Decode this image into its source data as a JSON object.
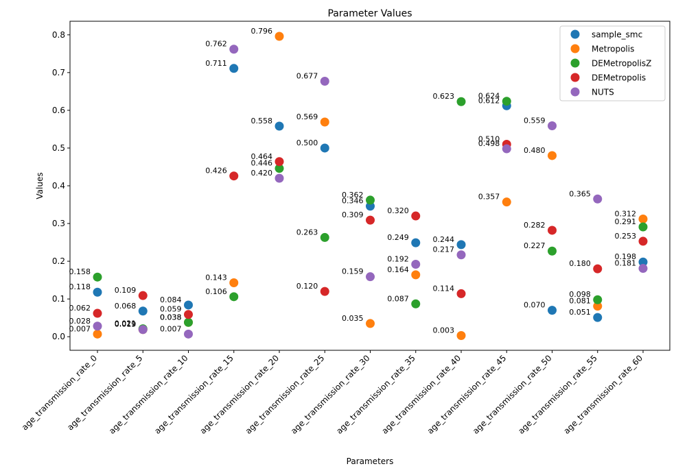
{
  "chart_data": {
    "type": "scatter",
    "title": "Parameter Values",
    "xlabel": "Parameters",
    "ylabel": "Values",
    "categories": [
      "age_transmission_rate_0",
      "age_transmission_rate_5",
      "age_transmission_rate_10",
      "age_transmission_rate_15",
      "age_transmission_rate_20",
      "age_transmission_rate_25",
      "age_transmission_rate_30",
      "age_transmission_rate_35",
      "age_transmission_rate_40",
      "age_transmission_rate_45",
      "age_transmission_rate_50",
      "age_transmission_rate_55",
      "age_transmission_rate_60"
    ],
    "ylim": [
      -0.036,
      0.836
    ],
    "yticks": [
      0.0,
      0.1,
      0.2,
      0.3,
      0.4,
      0.5,
      0.6,
      0.7,
      0.8
    ],
    "ytick_labels": [
      "0.0",
      "0.1",
      "0.2",
      "0.3",
      "0.4",
      "0.5",
      "0.6",
      "0.7",
      "0.8"
    ],
    "grid": false,
    "legend_position": "top-right",
    "series": [
      {
        "name": "sample_smc",
        "color": "#1f77b4",
        "values": [
          0.118,
          0.068,
          0.084,
          0.711,
          0.558,
          0.5,
          0.346,
          0.249,
          0.244,
          0.612,
          0.07,
          0.051,
          0.198
        ],
        "labels": [
          "0.118",
          "0.068",
          "0.084",
          "0.711",
          "0.558",
          "0.500",
          "0.346",
          "0.249",
          "0.244",
          "0.612",
          "0.070",
          "0.051",
          "0.198"
        ]
      },
      {
        "name": "Metropolis",
        "color": "#ff7f0e",
        "values": [
          0.007,
          0.019,
          0.038,
          0.143,
          0.796,
          0.569,
          0.035,
          0.164,
          0.003,
          0.357,
          0.48,
          0.081,
          0.312
        ],
        "labels": [
          "0.007",
          "0.019",
          "0.038",
          "0.143",
          "0.796",
          "0.569",
          "0.035",
          "0.164",
          "0.003",
          "0.357",
          "0.480",
          "0.081",
          "0.312"
        ]
      },
      {
        "name": "DEMetropolisZ",
        "color": "#2ca02c",
        "values": [
          0.158,
          0.021,
          0.038,
          0.106,
          0.446,
          0.263,
          0.362,
          0.087,
          0.623,
          0.624,
          0.227,
          0.098,
          0.291
        ],
        "labels": [
          "0.158",
          "0.021",
          "0.038",
          "0.106",
          "0.446",
          "0.263",
          "0.362",
          "0.087",
          "0.623",
          "0.624",
          "0.227",
          "0.098",
          "0.291"
        ]
      },
      {
        "name": "DEMetropolis",
        "color": "#d62728",
        "values": [
          0.062,
          0.109,
          0.059,
          0.426,
          0.464,
          0.12,
          0.309,
          0.32,
          0.114,
          0.51,
          0.282,
          0.18,
          0.253
        ],
        "labels": [
          "0.062",
          "0.109",
          "0.059",
          "0.426",
          "0.464",
          "0.120",
          "0.309",
          "0.320",
          "0.114",
          "0.510",
          "0.282",
          "0.180",
          "0.253"
        ]
      },
      {
        "name": "NUTS",
        "color": "#9467bd",
        "values": [
          0.028,
          0.019,
          0.007,
          0.762,
          0.42,
          0.677,
          0.159,
          0.192,
          0.217,
          0.498,
          0.559,
          0.365,
          0.181
        ],
        "labels": [
          "0.028",
          "0.019",
          "0.007",
          "0.762",
          "0.420",
          "0.677",
          "0.159",
          "0.192",
          "0.217",
          "0.498",
          "0.559",
          "0.365",
          "0.181"
        ]
      }
    ]
  }
}
